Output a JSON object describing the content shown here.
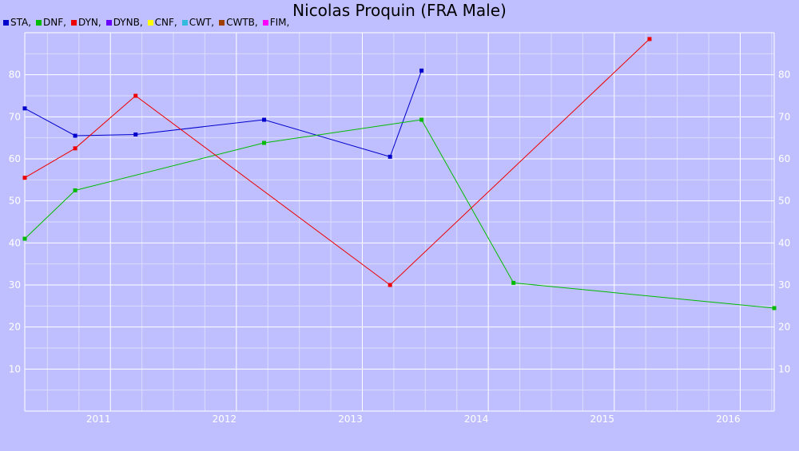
{
  "chart_data": {
    "type": "line",
    "title": "Nicolas Proquin (FRA Male)",
    "xlabel": "",
    "ylabel": "",
    "xlim": [
      2010.32,
      2016.27
    ],
    "ylim": [
      0,
      90
    ],
    "x_ticks": [
      "2011",
      "2012",
      "2013",
      "2014",
      "2015",
      "2016"
    ],
    "y_ticks": [
      "10",
      "20",
      "30",
      "40",
      "50",
      "60",
      "70",
      "80"
    ],
    "grid": true,
    "legend_position": "top-left",
    "legend": [
      {
        "label": "STA,",
        "color": "#0000cc"
      },
      {
        "label": "DNF,",
        "color": "#00bb00"
      },
      {
        "label": "DYN,",
        "color": "#ee0000"
      },
      {
        "label": "DYNB,",
        "color": "#6a00ff"
      },
      {
        "label": "CNF,",
        "color": "#ffff00"
      },
      {
        "label": "CWT,",
        "color": "#33bbdd"
      },
      {
        "label": "CWTB,",
        "color": "#a04000"
      },
      {
        "label": "FIM,",
        "color": "#ff00ff"
      }
    ],
    "series": [
      {
        "name": "STA",
        "color": "#0000cc",
        "x": [
          2010.32,
          2010.72,
          2011.2,
          2012.22,
          2013.22,
          2013.47
        ],
        "y": [
          72,
          65.5,
          65.8,
          69.3,
          60.5,
          81
        ]
      },
      {
        "name": "DNF",
        "color": "#00bb00",
        "x": [
          2010.32,
          2010.72,
          2012.22,
          2013.47,
          2014.2,
          2016.27
        ],
        "y": [
          41,
          52.5,
          63.8,
          69.3,
          30.5,
          24.5
        ]
      },
      {
        "name": "DYN",
        "color": "#ee0000",
        "x": [
          2010.32,
          2010.72,
          2011.2,
          2013.22,
          2015.28
        ],
        "y": [
          55.5,
          62.5,
          75,
          30,
          88.5
        ]
      }
    ]
  }
}
